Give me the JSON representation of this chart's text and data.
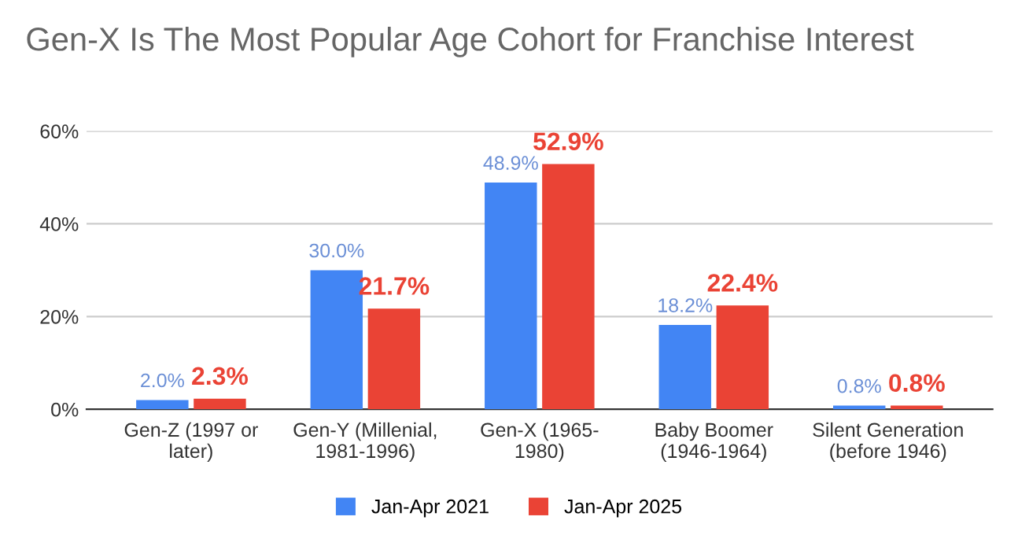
{
  "chart_data": {
    "type": "bar",
    "title": "Gen-X Is The Most Popular Age Cohort for Franchise Interest",
    "categories": [
      "Gen-Z (1997 or\nlater)",
      "Gen-Y (Millenial,\n1981-1996)",
      "Gen-X (1965-\n1980)",
      "Baby Boomer\n(1946-1964)",
      "Silent Generation\n(before 1946)"
    ],
    "series": [
      {
        "name": "Jan-Apr 2021",
        "color": "#4285f4",
        "values": [
          2.0,
          30.0,
          48.9,
          18.2,
          0.8
        ],
        "value_labels": [
          "2.0%",
          "30.0%",
          "48.9%",
          "18.2%",
          "0.8%"
        ]
      },
      {
        "name": "Jan-Apr 2025",
        "color": "#ea4335",
        "values": [
          2.3,
          21.7,
          52.9,
          22.4,
          0.8
        ],
        "value_labels": [
          "2.3%",
          "21.7%",
          "52.9%",
          "22.4%",
          "0.8%"
        ]
      }
    ],
    "ylim": [
      0,
      60
    ],
    "yticks": [
      {
        "value": 0,
        "label": "0%"
      },
      {
        "value": 20,
        "label": "20%"
      },
      {
        "value": 40,
        "label": "40%"
      },
      {
        "value": 60,
        "label": "60%"
      }
    ],
    "grid": "y",
    "legend": "bottom"
  }
}
